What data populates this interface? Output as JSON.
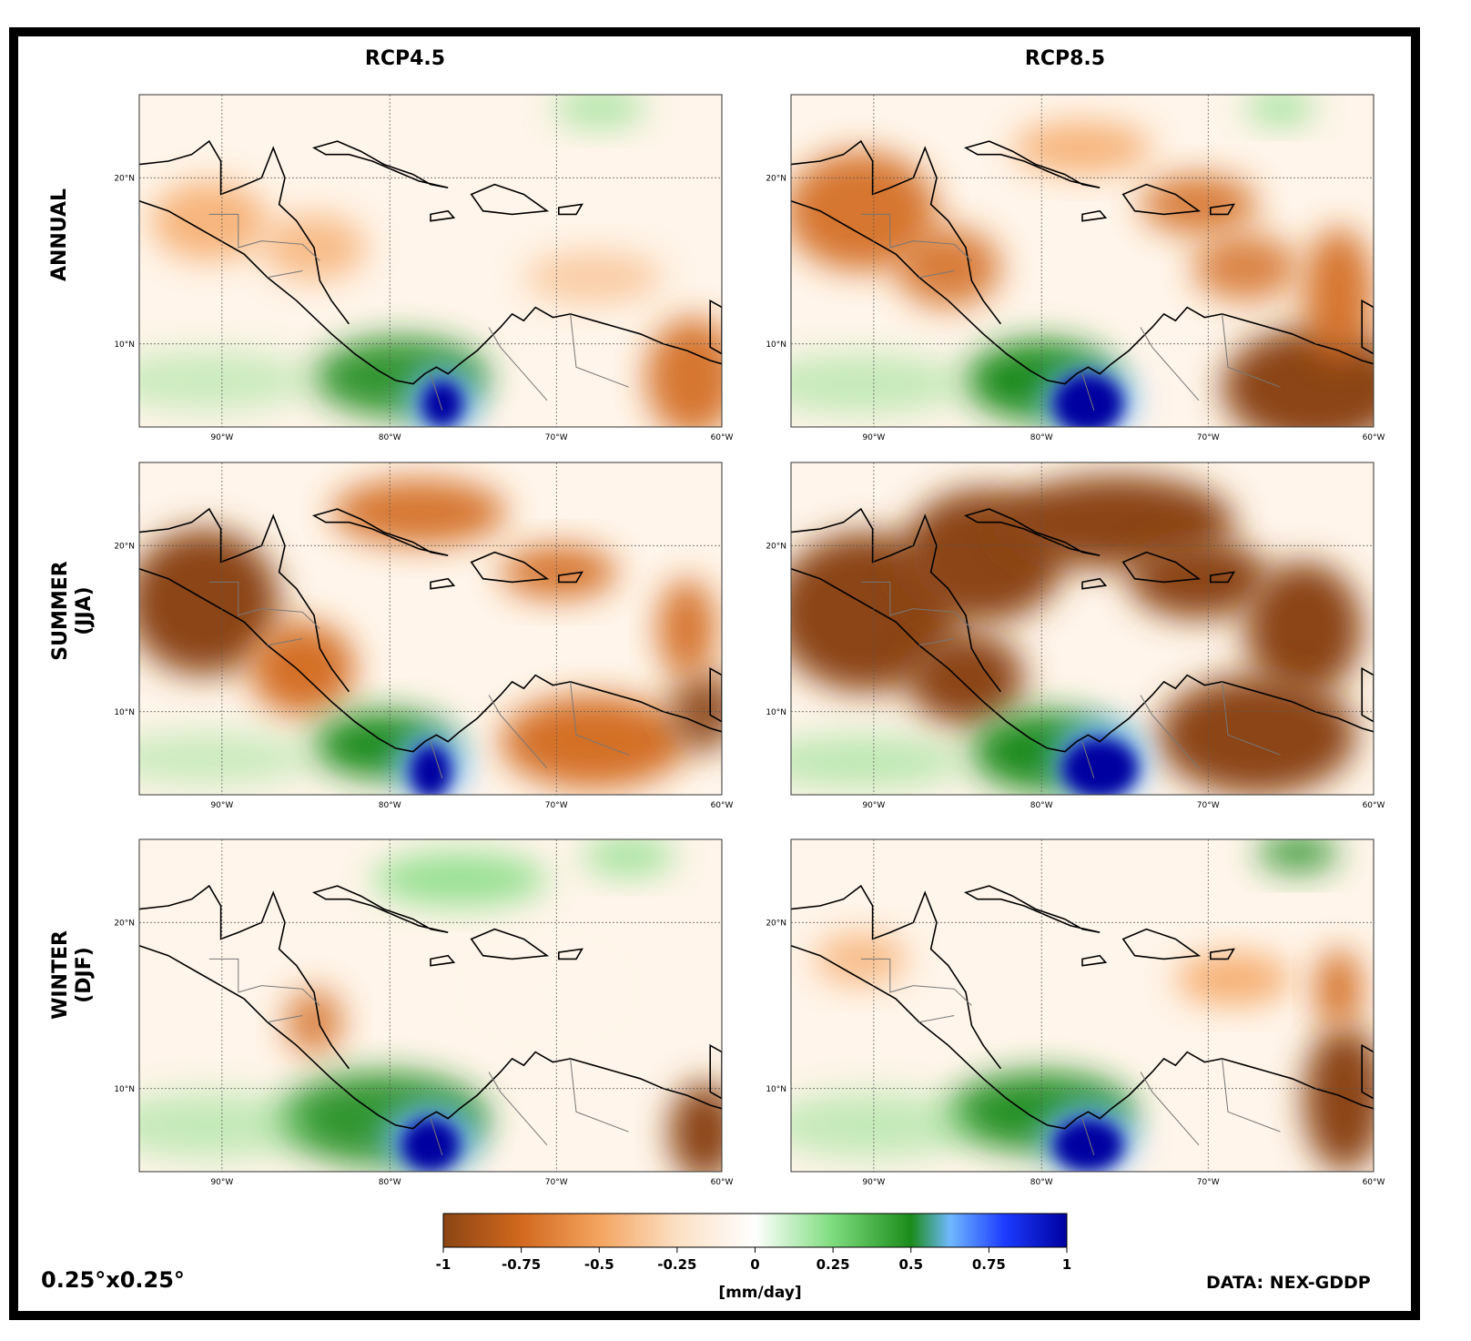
{
  "column_titles": [
    "RCP4.5",
    "RCP8.5"
  ],
  "row_titles": [
    {
      "line1": "ANNUAL",
      "line2": ""
    },
    {
      "line1": "SUMMER",
      "line2": "(JJA)"
    },
    {
      "line1": "WINTER",
      "line2": "(DJF)"
    }
  ],
  "axes": {
    "lon_ticks": [
      "90°W",
      "80°W",
      "70°W",
      "60°W"
    ],
    "lat_ticks": [
      "20°N",
      "10°N"
    ],
    "lon_range": [
      -95,
      -60
    ],
    "lat_range": [
      5,
      25
    ]
  },
  "panels": [
    {
      "id": "annual-rcp45",
      "season": "ANNUAL",
      "scenario": "RCP4.5"
    },
    {
      "id": "annual-rcp85",
      "season": "ANNUAL",
      "scenario": "RCP8.5"
    },
    {
      "id": "summer-rcp45",
      "season": "SUMMER (JJA)",
      "scenario": "RCP4.5"
    },
    {
      "id": "summer-rcp85",
      "season": "SUMMER (JJA)",
      "scenario": "RCP8.5"
    },
    {
      "id": "winter-rcp45",
      "season": "WINTER (DJF)",
      "scenario": "RCP4.5"
    },
    {
      "id": "winter-rcp85",
      "season": "WINTER (DJF)",
      "scenario": "RCP8.5"
    }
  ],
  "colorbar": {
    "ticks": [
      "-1",
      "-0.75",
      "-0.5",
      "-0.25",
      "0",
      "0.25",
      "0.5",
      "0.75",
      "1"
    ],
    "min": -1,
    "max": 1,
    "label": "[mm/day]",
    "colors": [
      "#8b4513",
      "#d2691e",
      "#f4a460",
      "#fff5ea",
      "#ffffff",
      "#7ddc7d",
      "#1a8c1a",
      "#6fb8ff",
      "#0000a0"
    ]
  },
  "resolution": "0.25°x0.25°",
  "source": "DATA: NEX-GDDP"
}
